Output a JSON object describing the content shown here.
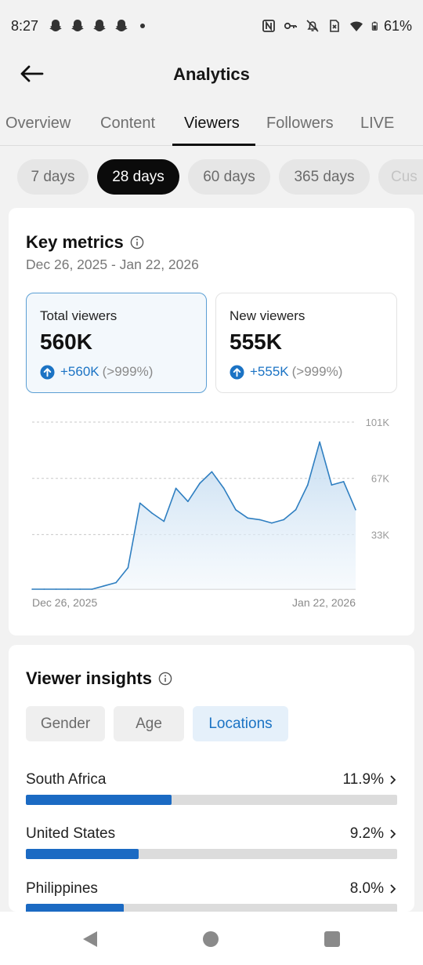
{
  "status_bar": {
    "time": "8:27",
    "battery": "61%",
    "icons": [
      "snapchat-icon",
      "snapchat-icon",
      "snapchat-icon",
      "snapchat-icon",
      "nfc-icon",
      "key-icon",
      "bell-off-icon",
      "sim-off-icon",
      "wifi-icon",
      "battery-icon"
    ]
  },
  "header": {
    "title": "Analytics",
    "back_icon": "arrow-left-icon"
  },
  "tabs": [
    {
      "label": "Overview"
    },
    {
      "label": "Content"
    },
    {
      "label": "Viewers"
    },
    {
      "label": "Followers"
    },
    {
      "label": "LIVE"
    }
  ],
  "active_tab": "Viewers",
  "date_pills": [
    {
      "label": "7 days"
    },
    {
      "label": "28 days"
    },
    {
      "label": "60 days"
    },
    {
      "label": "365 days"
    },
    {
      "label": "Cus"
    }
  ],
  "active_pill": "28 days",
  "key_metrics": {
    "title": "Key metrics",
    "date_range": "Dec 26, 2025 - Jan 22, 2026",
    "metrics": [
      {
        "label": "Total viewers",
        "value": "560K",
        "change": "+560K",
        "change_pct": "(>999%)"
      },
      {
        "label": "New viewers",
        "value": "555K",
        "change": "+555K",
        "change_pct": "(>999%)"
      }
    ]
  },
  "chart_data": {
    "type": "area",
    "x_start_label": "Dec 26, 2025",
    "x_end_label": "Jan 22, 2026",
    "y_tick_labels": [
      "101K",
      "67K",
      "33K"
    ],
    "y_ticks": [
      101,
      67,
      33
    ],
    "ylim": [
      0,
      101
    ],
    "grid": true,
    "series": [
      {
        "values": [
          0,
          0,
          0,
          0,
          0,
          0,
          2,
          4,
          13,
          52,
          46,
          41,
          61,
          53,
          64,
          71,
          61,
          48,
          43,
          42,
          40,
          42,
          48,
          63,
          89,
          63,
          65,
          48
        ]
      }
    ],
    "colors": {
      "line": "#2f7fc1",
      "fill_top": "#bcd7ef",
      "fill_bottom": "#f1f7fc",
      "grid": "#c8c8c8",
      "baseline": "#cfcfcf"
    }
  },
  "viewer_insights": {
    "title": "Viewer insights",
    "segments": [
      {
        "label": "Gender"
      },
      {
        "label": "Age"
      },
      {
        "label": "Locations"
      }
    ],
    "active_segment": "Locations",
    "locations": [
      {
        "name": "South Africa",
        "pct_label": "11.9%",
        "fraction": 0.119
      },
      {
        "name": "United States",
        "pct_label": "9.2%",
        "fraction": 0.092
      },
      {
        "name": "Philippines",
        "pct_label": "8.0%",
        "fraction": 0.08
      }
    ]
  },
  "nav_bar": {
    "icons": [
      "nav-back-icon",
      "nav-home-icon",
      "nav-recents-icon"
    ]
  }
}
